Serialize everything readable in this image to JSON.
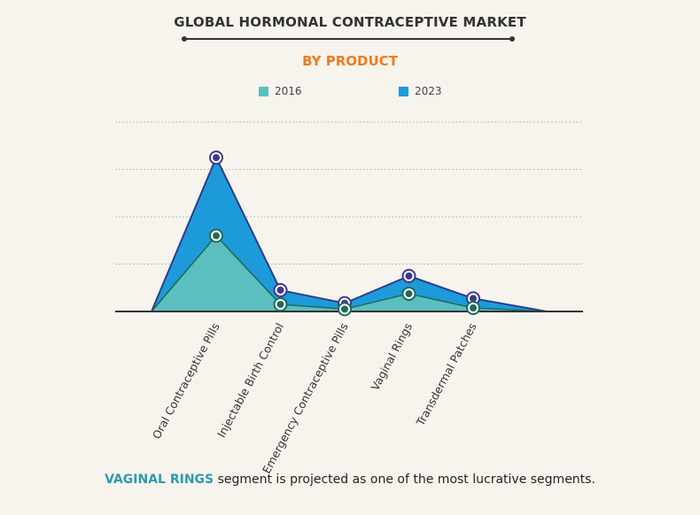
{
  "title": "GLOBAL HORMONAL CONTRACEPTIVE MARKET",
  "subtitle": "BY PRODUCT",
  "footnote": {
    "highlight": "VAGINAL RINGS",
    "text": " segment is projected as one of the most lucrative segments."
  },
  "colors": {
    "s2016_fill": "#5bbfbf",
    "s2016_marker": "#1e6a5a",
    "s2023_fill": "#1d9ad9",
    "s2023_marker": "#3a3a8c",
    "outline": "#2c3c8c",
    "grid": "#bdbdbd",
    "axis": "#333333"
  },
  "chart_data": {
    "type": "area",
    "categories": [
      "Oral Contraceptive Pills",
      "Injectable Birth Control",
      "Emergency Contraceptive Pills",
      "Vaginal Rings",
      "Transdermal Patches"
    ],
    "series": [
      {
        "name": "2016",
        "values": [
          3.2,
          0.3,
          0.1,
          0.75,
          0.15
        ]
      },
      {
        "name": "2023",
        "values": [
          6.5,
          0.9,
          0.35,
          1.5,
          0.55
        ]
      }
    ],
    "ylim": [
      0,
      8
    ],
    "grid": true,
    "legend_position": "top"
  }
}
